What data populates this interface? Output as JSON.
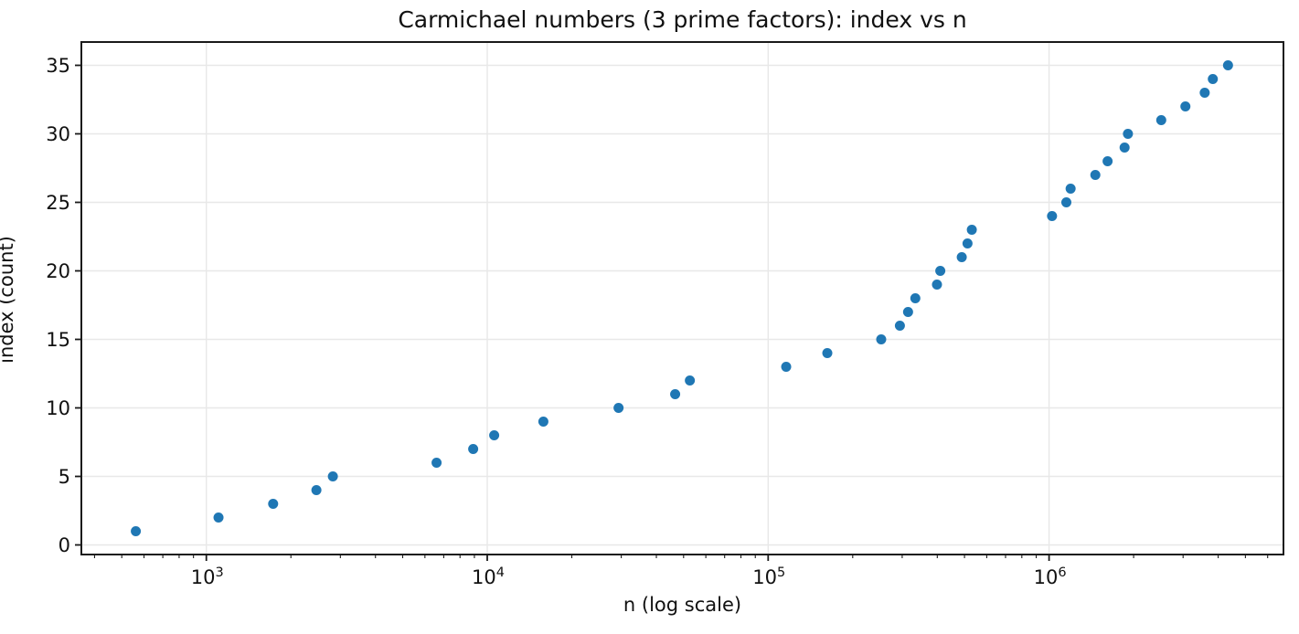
{
  "chart_data": {
    "type": "scatter",
    "title": "Carmichael numbers (3 prime factors): index vs n",
    "xlabel": "n (log scale)",
    "ylabel": "index (count)",
    "x_scale": "log",
    "grid": true,
    "legend": false,
    "xlim": [
      359,
      6830000
    ],
    "ylim": [
      -0.7,
      36.7
    ],
    "x_major_tick_exponents": [
      3,
      4,
      5,
      6
    ],
    "y_ticks": [
      0,
      5,
      10,
      15,
      20,
      25,
      30,
      35
    ],
    "marker": {
      "color": "#1f77b4",
      "radius": 5.5
    },
    "grid_color": "#e8e8e8",
    "spine_color": "#1a1a1a",
    "text_color": "#111111",
    "x": [
      561,
      1105,
      1729,
      2465,
      2821,
      6601,
      8911,
      10585,
      15841,
      29341,
      46657,
      52633,
      115921,
      162401,
      252601,
      294409,
      314821,
      334153,
      399001,
      410041,
      488881,
      512461,
      530881,
      1024651,
      1152271,
      1193221,
      1461241,
      1615681,
      1857241,
      1909001,
      2508013,
      3057601,
      3581761,
      3828001,
      4335241
    ],
    "y": [
      1,
      2,
      3,
      4,
      5,
      6,
      7,
      8,
      9,
      10,
      11,
      12,
      13,
      14,
      15,
      16,
      17,
      18,
      19,
      20,
      21,
      22,
      23,
      24,
      25,
      26,
      27,
      28,
      29,
      30,
      31,
      32,
      33,
      34,
      35
    ]
  }
}
